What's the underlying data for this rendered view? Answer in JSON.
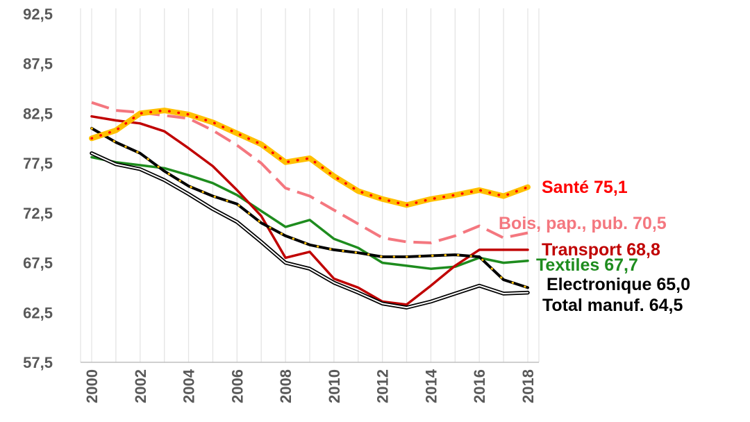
{
  "chart_data": {
    "type": "line",
    "title": "",
    "xlabel": "",
    "ylabel": "",
    "x": [
      2000,
      2001,
      2002,
      2003,
      2004,
      2005,
      2006,
      2007,
      2008,
      2009,
      2010,
      2011,
      2012,
      2013,
      2014,
      2015,
      2016,
      2017,
      2018
    ],
    "xticks": [
      "2000",
      "2002",
      "2004",
      "2006",
      "2008",
      "2010",
      "2012",
      "2014",
      "2016",
      "2018"
    ],
    "yticks": [
      "92,5",
      "87,5",
      "82,5",
      "77,5",
      "72,5",
      "67,5",
      "62,5",
      "57,5"
    ],
    "ylim": [
      57.5,
      92.5
    ],
    "xlim": [
      2000,
      2018
    ],
    "grid": "vertical",
    "legend": "end-of-line labels",
    "series": [
      {
        "name": "Santé",
        "end_label": "Santé 75,1",
        "color": "#ff0000",
        "line_color": "#ffc000",
        "style": "thick-dotted",
        "values": [
          80.0,
          80.8,
          82.5,
          82.8,
          82.4,
          81.6,
          80.5,
          79.4,
          77.6,
          78.0,
          76.2,
          74.7,
          73.9,
          73.3,
          73.9,
          74.3,
          74.8,
          74.2,
          75.1
        ]
      },
      {
        "name": "Bois, pap., pub.",
        "end_label": "Bois, pap., pub. 70,5",
        "color": "#f4777f",
        "style": "dashed",
        "values": [
          83.6,
          82.8,
          82.6,
          82.3,
          82.0,
          80.8,
          79.3,
          77.5,
          75.0,
          74.2,
          72.8,
          71.4,
          70.0,
          69.6,
          69.5,
          70.2,
          71.2,
          70.0,
          70.5
        ]
      },
      {
        "name": "Transport",
        "end_label": "Transport 68,8",
        "color": "#c00000",
        "style": "solid",
        "values": [
          82.2,
          81.8,
          81.5,
          80.7,
          79.0,
          77.2,
          74.8,
          72.2,
          68.0,
          68.6,
          65.9,
          65.0,
          63.6,
          63.3,
          65.2,
          67.2,
          68.8,
          68.8,
          68.8
        ]
      },
      {
        "name": "Textiles",
        "end_label": "Textiles 67,7",
        "color": "#1e8c1e",
        "style": "solid",
        "values": [
          78.1,
          77.6,
          77.3,
          77.0,
          76.3,
          75.5,
          74.3,
          72.7,
          71.1,
          71.8,
          69.9,
          69.0,
          67.5,
          67.2,
          66.9,
          67.1,
          68.0,
          67.5,
          67.7
        ]
      },
      {
        "name": "Electronique",
        "end_label": "Electronique 65,0",
        "color": "#000000",
        "line_color": "#000000",
        "dot_color": "#ffc000",
        "style": "dotted",
        "values": [
          81.0,
          79.6,
          78.5,
          76.7,
          75.2,
          74.2,
          73.4,
          71.5,
          70.2,
          69.3,
          68.8,
          68.5,
          68.1,
          68.1,
          68.2,
          68.3,
          68.1,
          65.8,
          65.0
        ]
      },
      {
        "name": "Total manuf.",
        "end_label": "Total manuf. 64,5",
        "color": "#000000",
        "style": "double",
        "values": [
          78.5,
          77.4,
          76.9,
          75.8,
          74.4,
          72.9,
          71.6,
          69.6,
          67.5,
          66.9,
          65.5,
          64.5,
          63.4,
          63.0,
          63.6,
          64.4,
          65.2,
          64.4,
          64.5
        ]
      }
    ]
  }
}
